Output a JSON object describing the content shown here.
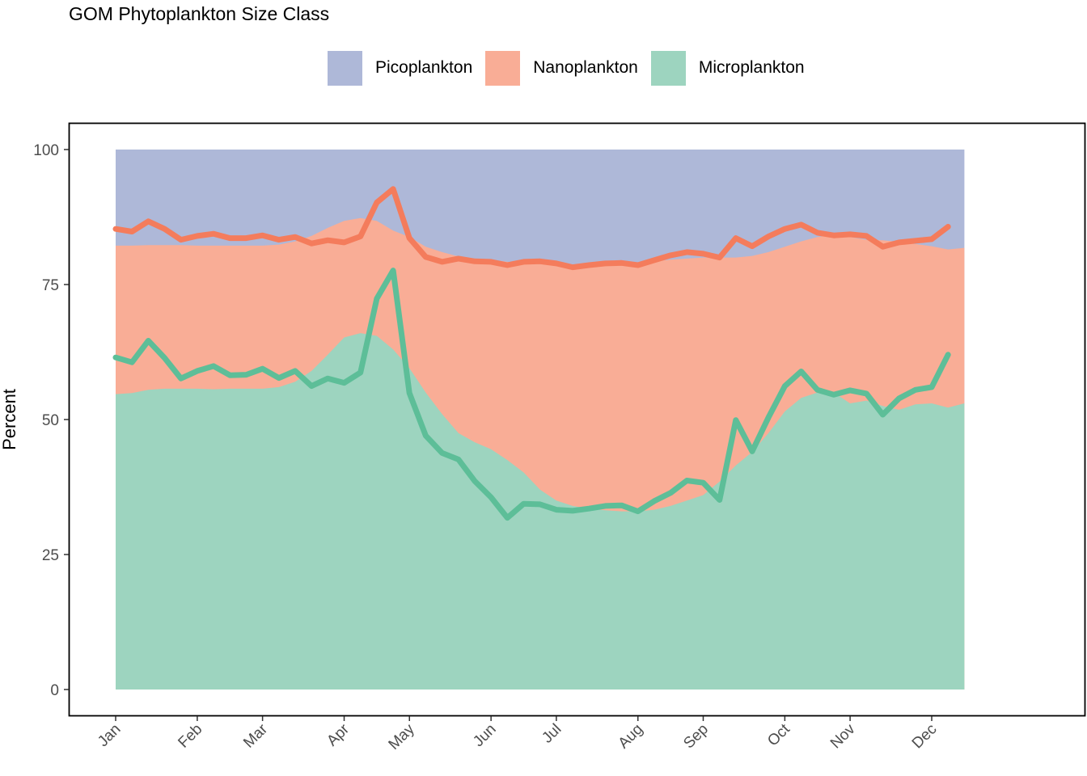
{
  "chart_data": {
    "type": "area",
    "title": "GOM Phytoplankton Size Class",
    "xlabel": "",
    "ylabel": "Percent",
    "ylim": [
      0,
      100
    ],
    "yticks": [
      0,
      25,
      50,
      75,
      100
    ],
    "x_tick_labels": [
      "Jan",
      "Feb",
      "Mar",
      "Apr",
      "May",
      "Jun",
      "Jul",
      "Aug",
      "Sep",
      "Oct",
      "Nov",
      "Dec"
    ],
    "x_tick_weeks": [
      1,
      6,
      10,
      15,
      19,
      24,
      28,
      33,
      37,
      42,
      46,
      51
    ],
    "legend_position": "top",
    "grid": false,
    "colors": {
      "Picoplankton": "#AEB8D8",
      "Nanoplankton": "#F9AD96",
      "Microplankton": "#9DD4BF",
      "nano_line": "#F47C5C",
      "micro_line": "#5DBE98"
    },
    "weeks": [
      1,
      2,
      3,
      4,
      5,
      6,
      7,
      8,
      9,
      10,
      11,
      12,
      13,
      14,
      15,
      16,
      17,
      18,
      19,
      20,
      21,
      22,
      23,
      24,
      25,
      26,
      27,
      28,
      29,
      30,
      31,
      32,
      33,
      34,
      35,
      36,
      37,
      38,
      39,
      40,
      41,
      42,
      43,
      44,
      45,
      46,
      47,
      48,
      49,
      50,
      51,
      52,
      53
    ],
    "series": [
      {
        "name": "Picoplankton",
        "kind": "area",
        "values": [
          100,
          100,
          100,
          100,
          100,
          100,
          100,
          100,
          100,
          100,
          100,
          100,
          100,
          100,
          100,
          100,
          100,
          100,
          100,
          100,
          100,
          100,
          100,
          100,
          100,
          100,
          100,
          100,
          100,
          100,
          100,
          100,
          100,
          100,
          100,
          100,
          100,
          100,
          100,
          100,
          100,
          100,
          100,
          100,
          100,
          100,
          100,
          100,
          100,
          100,
          100,
          100,
          100
        ]
      },
      {
        "name": "Nanoplankton",
        "kind": "area",
        "values": [
          82.2,
          82.2,
          82.3,
          82.3,
          82.3,
          82.2,
          82.2,
          82.2,
          82.2,
          82.2,
          82.4,
          83.0,
          84.0,
          85.5,
          86.8,
          87.3,
          86.8,
          85.0,
          83.8,
          82.0,
          81.0,
          80.2,
          79.8,
          79.6,
          79.2,
          79.0,
          78.8,
          78.5,
          78.3,
          78.3,
          78.5,
          78.8,
          79.0,
          79.3,
          79.6,
          79.8,
          80.0,
          80.0,
          80.0,
          80.3,
          81.0,
          82.0,
          83.0,
          83.8,
          84.2,
          83.8,
          83.3,
          83.2,
          82.9,
          82.5,
          82.1,
          81.5,
          81.8
        ]
      },
      {
        "name": "Microplankton",
        "kind": "area",
        "values": [
          54.7,
          54.9,
          55.5,
          55.7,
          55.7,
          55.7,
          55.6,
          55.7,
          55.7,
          55.7,
          56.0,
          57.0,
          59.0,
          62.0,
          65.2,
          66.0,
          65.5,
          63.0,
          59.5,
          55.0,
          51.0,
          47.5,
          45.8,
          44.5,
          42.5,
          40.2,
          37.0,
          35.0,
          34.0,
          33.5,
          33.2,
          33.0,
          33.0,
          33.3,
          34.0,
          35.0,
          36.0,
          38.5,
          41.5,
          44.0,
          47.5,
          51.5,
          54.0,
          55.0,
          55.0,
          53.0,
          53.5,
          52.5,
          51.8,
          52.8,
          53.0,
          52.2,
          53.0
        ]
      },
      {
        "name": "Nanoplankton",
        "kind": "line",
        "values": [
          85.3,
          84.8,
          86.7,
          85.3,
          83.3,
          84.0,
          84.4,
          83.6,
          83.6,
          84.1,
          83.3,
          83.8,
          82.6,
          83.2,
          82.8,
          83.9,
          90.2,
          92.7,
          83.6,
          80.1,
          79.2,
          79.8,
          79.3,
          79.2,
          78.6,
          79.2,
          79.3,
          78.9,
          78.2,
          78.6,
          78.9,
          79.0,
          78.6,
          79.5,
          80.4,
          81.0,
          80.7,
          80.0,
          83.6,
          82.1,
          83.9,
          85.3,
          86.1,
          84.6,
          84.1,
          84.3,
          84.0,
          82.0,
          82.8,
          83.1,
          83.4,
          85.7
        ]
      },
      {
        "name": "Microplankton",
        "kind": "line",
        "values": [
          61.5,
          60.6,
          64.6,
          61.4,
          57.6,
          59.0,
          59.9,
          58.2,
          58.3,
          59.4,
          57.7,
          59.0,
          56.2,
          57.6,
          56.8,
          58.7,
          72.4,
          77.6,
          54.9,
          47.0,
          43.8,
          42.6,
          38.6,
          35.6,
          31.8,
          34.4,
          34.3,
          33.3,
          33.1,
          33.5,
          34.0,
          34.1,
          33.0,
          34.9,
          36.4,
          38.7,
          38.3,
          35.1,
          49.9,
          44.1,
          50.4,
          56.2,
          58.9,
          55.5,
          54.6,
          55.4,
          54.8,
          50.9,
          53.9,
          55.5,
          56.0,
          62.0
        ]
      }
    ]
  }
}
